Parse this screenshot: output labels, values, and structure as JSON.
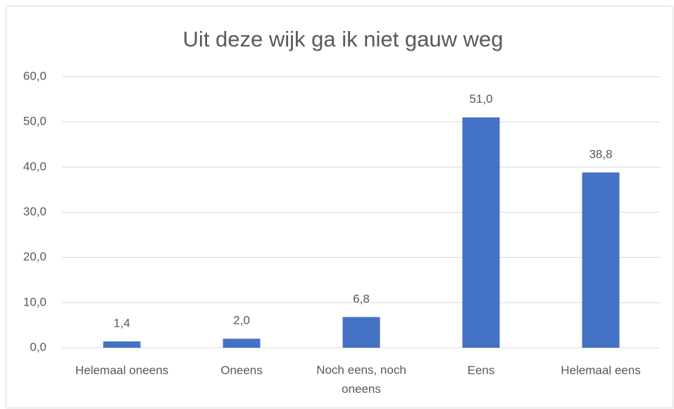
{
  "chart_data": {
    "type": "bar",
    "title": "Uit deze wijk ga ik niet gauw weg",
    "categories": [
      "Helemaal oneens",
      "Oneens",
      "Noch eens, noch oneens",
      "Eens",
      "Helemaal eens"
    ],
    "values": [
      1.4,
      2.0,
      6.8,
      51.0,
      38.8
    ],
    "value_labels": [
      "1,4",
      "2,0",
      "6,8",
      "51,0",
      "38,8"
    ],
    "color": "#4472c4",
    "ylim": [
      0,
      60
    ],
    "yticks": [
      {
        "value": 0,
        "label": "0,0"
      },
      {
        "value": 10,
        "label": "10,0"
      },
      {
        "value": 20,
        "label": "20,0"
      },
      {
        "value": 30,
        "label": "30,0"
      },
      {
        "value": 40,
        "label": "40,0"
      },
      {
        "value": 50,
        "label": "50,0"
      },
      {
        "value": 60,
        "label": "60,0"
      }
    ],
    "grid": true
  }
}
